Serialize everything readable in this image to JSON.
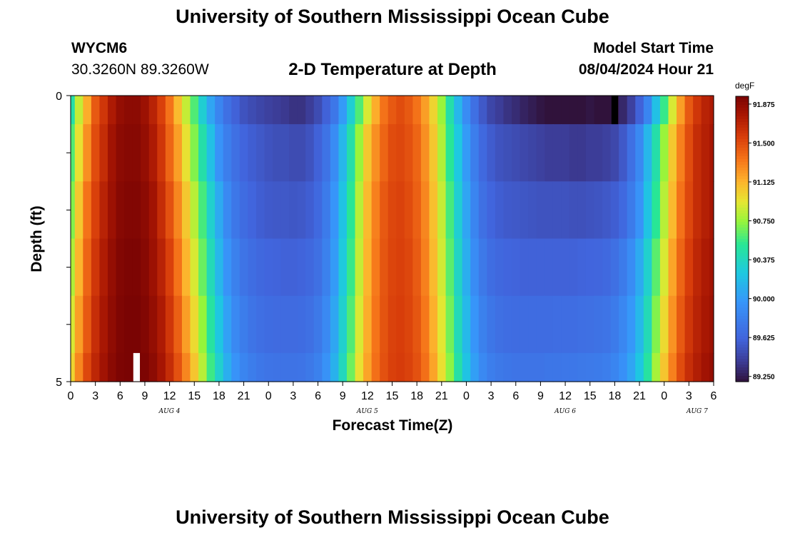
{
  "page": {
    "title": "University of Southern Mississippi Ocean Cube",
    "footer_title": "University of Southern Mississippi Ocean Cube",
    "station_id": "WYCM6",
    "station_coords": "30.3260N  89.3260W",
    "plot_title": "2-D Temperature at Depth",
    "start_time_label": "Model Start Time",
    "start_time_value": "08/04/2024 Hour 21"
  },
  "chart_data": {
    "type": "heatmap",
    "title": "2-D Temperature at Depth",
    "xlabel": "Forecast Time(Z)",
    "ylabel": "Depth (ft)",
    "x_units": "hours",
    "xlim": [
      0,
      78
    ],
    "ylim": [
      5,
      0
    ],
    "y_ticks": [
      0,
      1,
      2,
      3,
      4,
      5
    ],
    "y_tick_labels": [
      "0",
      "",
      "",
      "",
      "",
      "5"
    ],
    "x_tick_labels": [
      "0",
      "3",
      "6",
      "9",
      "12",
      "15",
      "18",
      "21",
      "0",
      "3",
      "6",
      "9",
      "12",
      "15",
      "18",
      "21",
      "0",
      "3",
      "6",
      "9",
      "12",
      "15",
      "18",
      "21",
      "0",
      "3",
      "6"
    ],
    "date_labels": [
      {
        "text": "AUG 4",
        "hour": 12
      },
      {
        "text": "AUG 5",
        "hour": 36
      },
      {
        "text": "AUG 6",
        "hour": 60
      },
      {
        "text": "AUG 7",
        "hour": 76
      }
    ],
    "colorbar": {
      "unit": "degF",
      "min": 89.2,
      "max": 91.95,
      "ticks": [
        "91.875",
        "91.500",
        "91.125",
        "90.750",
        "90.375",
        "90.000",
        "89.625",
        "89.250"
      ]
    },
    "depth_layers": [
      0,
      0.5,
      1.5,
      2.5,
      3.5,
      4.5,
      5
    ],
    "hourly_series": [
      {
        "name": "surface",
        "values": [
          90.45,
          90.85,
          91.15,
          91.45,
          91.6,
          91.75,
          91.85,
          91.88,
          91.88,
          91.82,
          91.7,
          91.55,
          91.35,
          91.1,
          90.85,
          90.6,
          90.3,
          90.05,
          89.85,
          89.7,
          89.6,
          89.52,
          89.48,
          89.45,
          89.42,
          89.4,
          89.38,
          89.35,
          89.35,
          89.4,
          89.48,
          89.6,
          89.75,
          90.0,
          90.3,
          90.6,
          90.9,
          91.15,
          91.35,
          91.45,
          91.5,
          91.45,
          91.35,
          91.2,
          91.0,
          90.75,
          90.45,
          90.15,
          89.9,
          89.7,
          89.55,
          89.45,
          89.4,
          89.35,
          89.32,
          89.28,
          89.25,
          89.22,
          89.2,
          89.18,
          89.15,
          89.15,
          89.18,
          89.22,
          89.2,
          89.18,
          89.22,
          89.3,
          89.42,
          89.6,
          89.85,
          90.2,
          90.55,
          90.9,
          91.2,
          91.45,
          91.6,
          91.7,
          91.75
        ]
      },
      {
        "name": "d1",
        "values": [
          90.6,
          90.95,
          91.25,
          91.5,
          91.65,
          91.8,
          91.88,
          91.9,
          91.9,
          91.85,
          91.75,
          91.6,
          91.4,
          91.2,
          90.95,
          90.7,
          90.45,
          90.2,
          89.95,
          89.8,
          89.7,
          89.62,
          89.58,
          89.55,
          89.52,
          89.5,
          89.5,
          89.48,
          89.48,
          89.52,
          89.6,
          89.72,
          89.9,
          90.15,
          90.45,
          90.75,
          91.05,
          91.25,
          91.4,
          91.5,
          91.52,
          91.48,
          91.4,
          91.25,
          91.05,
          90.8,
          90.52,
          90.25,
          90.0,
          89.8,
          89.65,
          89.57,
          89.52,
          89.5,
          89.48,
          89.46,
          89.44,
          89.42,
          89.4,
          89.4,
          89.4,
          89.38,
          89.38,
          89.4,
          89.4,
          89.42,
          89.46,
          89.55,
          89.7,
          89.88,
          90.15,
          90.45,
          90.75,
          91.05,
          91.3,
          91.5,
          91.65,
          91.72,
          91.78
        ]
      },
      {
        "name": "d2",
        "values": [
          90.7,
          91.05,
          91.35,
          91.55,
          91.7,
          91.82,
          91.9,
          91.92,
          91.92,
          91.88,
          91.8,
          91.65,
          91.48,
          91.28,
          91.05,
          90.82,
          90.58,
          90.32,
          90.08,
          89.88,
          89.75,
          89.67,
          89.62,
          89.58,
          89.56,
          89.55,
          89.55,
          89.54,
          89.55,
          89.58,
          89.65,
          89.78,
          89.96,
          90.22,
          90.52,
          90.82,
          91.1,
          91.3,
          91.45,
          91.52,
          91.54,
          91.5,
          91.42,
          91.28,
          91.08,
          90.85,
          90.58,
          90.3,
          90.05,
          89.85,
          89.7,
          89.62,
          89.58,
          89.56,
          89.55,
          89.54,
          89.53,
          89.52,
          89.52,
          89.52,
          89.52,
          89.51,
          89.51,
          89.52,
          89.53,
          89.55,
          89.58,
          89.65,
          89.78,
          89.95,
          90.22,
          90.52,
          90.82,
          91.1,
          91.35,
          91.52,
          91.65,
          91.72,
          91.78
        ]
      },
      {
        "name": "d3",
        "values": [
          90.8,
          91.12,
          91.4,
          91.6,
          91.74,
          91.85,
          91.92,
          91.94,
          91.94,
          91.9,
          91.82,
          91.7,
          91.55,
          91.35,
          91.12,
          90.9,
          90.65,
          90.4,
          90.15,
          89.95,
          89.82,
          89.73,
          89.68,
          89.64,
          89.62,
          89.61,
          89.6,
          89.6,
          89.61,
          89.64,
          89.7,
          89.82,
          90.0,
          90.26,
          90.55,
          90.85,
          91.12,
          91.32,
          91.46,
          91.53,
          91.55,
          91.52,
          91.44,
          91.3,
          91.1,
          90.88,
          90.62,
          90.35,
          90.1,
          89.9,
          89.76,
          89.68,
          89.64,
          89.62,
          89.61,
          89.6,
          89.6,
          89.6,
          89.6,
          89.6,
          89.6,
          89.6,
          89.61,
          89.62,
          89.63,
          89.65,
          89.7,
          89.78,
          89.9,
          90.08,
          90.32,
          90.62,
          90.9,
          91.18,
          91.4,
          91.56,
          91.68,
          91.75,
          91.8
        ]
      },
      {
        "name": "d4",
        "values": [
          90.9,
          91.2,
          91.45,
          91.64,
          91.77,
          91.87,
          91.93,
          91.95,
          91.95,
          91.92,
          91.85,
          91.75,
          91.6,
          91.42,
          91.2,
          90.98,
          90.74,
          90.48,
          90.24,
          90.03,
          89.88,
          89.79,
          89.73,
          89.69,
          89.67,
          89.66,
          89.66,
          89.66,
          89.67,
          89.7,
          89.76,
          89.88,
          90.06,
          90.32,
          90.6,
          90.9,
          91.15,
          91.34,
          91.47,
          91.54,
          91.56,
          91.53,
          91.46,
          91.33,
          91.14,
          90.92,
          90.67,
          90.4,
          90.16,
          89.96,
          89.82,
          89.74,
          89.7,
          89.68,
          89.67,
          89.67,
          89.67,
          89.67,
          89.67,
          89.68,
          89.68,
          89.68,
          89.69,
          89.7,
          89.71,
          89.73,
          89.78,
          89.86,
          89.98,
          90.16,
          90.4,
          90.7,
          90.98,
          91.24,
          91.45,
          91.6,
          91.7,
          91.77,
          91.82
        ]
      },
      {
        "name": "d5",
        "values": [
          91.0,
          91.28,
          91.52,
          91.68,
          91.8,
          91.89,
          91.94,
          91.96,
          91.96,
          91.94,
          91.88,
          91.78,
          91.65,
          91.48,
          91.28,
          91.06,
          90.82,
          90.56,
          90.32,
          90.1,
          89.95,
          89.85,
          89.79,
          89.75,
          89.73,
          89.72,
          89.72,
          89.72,
          89.73,
          89.76,
          89.82,
          89.94,
          90.12,
          90.38,
          90.66,
          90.95,
          91.18,
          91.36,
          91.48,
          91.55,
          91.57,
          91.54,
          91.48,
          91.36,
          91.18,
          90.96,
          90.72,
          90.46,
          90.22,
          90.02,
          89.88,
          89.8,
          89.76,
          89.74,
          89.73,
          89.73,
          89.73,
          89.73,
          89.74,
          89.74,
          89.75,
          89.75,
          89.76,
          89.77,
          89.78,
          89.8,
          89.85,
          89.93,
          90.05,
          90.24,
          90.48,
          90.78,
          91.06,
          91.3,
          91.5,
          91.64,
          91.73,
          91.8,
          91.85
        ]
      }
    ],
    "markers": [
      {
        "kind": "no-data",
        "color": "#ffffff",
        "hour_start": 7.6,
        "hour_end": 8.4,
        "depth_start": 4.5,
        "depth_end": 5
      },
      {
        "kind": "below-range",
        "color": "#000000",
        "hour_start": 65.6,
        "hour_end": 66.4,
        "depth_start": 0,
        "depth_end": 0.5
      }
    ]
  }
}
